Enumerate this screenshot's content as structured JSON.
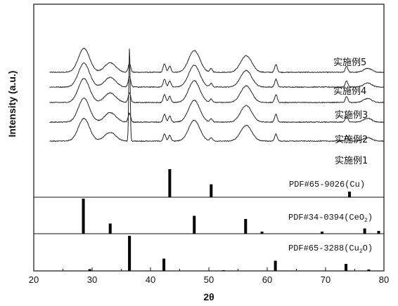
{
  "chart_data": {
    "type": "line",
    "xlabel": "2θ",
    "ylabel": "Intensity (a.u.)",
    "xlim": [
      20,
      80
    ],
    "xticks": [
      20,
      30,
      40,
      50,
      60,
      70,
      80
    ],
    "grid": false,
    "legend": "none",
    "series": [
      {
        "name": "实施例5",
        "peaks": [
          [
            28.6,
            55
          ],
          [
            33.1,
            22
          ],
          [
            36.4,
            20
          ],
          [
            42.4,
            20
          ],
          [
            43.3,
            14
          ],
          [
            47.5,
            50
          ],
          [
            50.4,
            8
          ],
          [
            56.4,
            38
          ],
          [
            61.5,
            18
          ],
          [
            73.6,
            14
          ],
          [
            77.2,
            9
          ]
        ]
      },
      {
        "name": "实施例4",
        "peaks": [
          [
            28.6,
            55
          ],
          [
            33.1,
            22
          ],
          [
            36.4,
            24
          ],
          [
            42.4,
            18
          ],
          [
            43.3,
            14
          ],
          [
            47.5,
            50
          ],
          [
            50.4,
            8
          ],
          [
            56.4,
            38
          ],
          [
            61.5,
            18
          ],
          [
            73.6,
            14
          ],
          [
            77.2,
            9
          ]
        ]
      },
      {
        "name": "实施例3",
        "peaks": [
          [
            28.6,
            55
          ],
          [
            33.1,
            22
          ],
          [
            36.4,
            22
          ],
          [
            42.4,
            18
          ],
          [
            43.3,
            14
          ],
          [
            47.5,
            50
          ],
          [
            50.4,
            8
          ],
          [
            56.4,
            38
          ],
          [
            61.5,
            18
          ],
          [
            73.6,
            14
          ],
          [
            77.2,
            9
          ]
        ]
      },
      {
        "name": "实施例2",
        "peaks": [
          [
            28.6,
            55
          ],
          [
            33.1,
            22
          ],
          [
            36.4,
            20
          ],
          [
            42.4,
            18
          ],
          [
            43.3,
            14
          ],
          [
            47.5,
            50
          ],
          [
            50.4,
            8
          ],
          [
            56.4,
            38
          ],
          [
            61.5,
            18
          ],
          [
            73.6,
            14
          ],
          [
            77.2,
            9
          ]
        ]
      },
      {
        "name": "实施例1",
        "peaks": [
          [
            28.6,
            52
          ],
          [
            33.1,
            20
          ],
          [
            36.4,
            215
          ],
          [
            42.4,
            16
          ],
          [
            43.3,
            13
          ],
          [
            47.5,
            48
          ],
          [
            50.4,
            7
          ],
          [
            56.4,
            36
          ],
          [
            61.5,
            16
          ],
          [
            73.6,
            13
          ],
          [
            77.2,
            8
          ]
        ]
      }
    ],
    "reference_patterns": [
      {
        "label": "PDF#65-9026(Cu)",
        "label_parts": [
          "PDF#65-9026(Cu)",
          "",
          ""
        ],
        "lines": [
          [
            43.3,
            100
          ],
          [
            50.4,
            46
          ],
          [
            74.1,
            20
          ]
        ]
      },
      {
        "label": "PDF#34-0394(CeO2)",
        "label_parts": [
          "PDF#34-0394(CeO",
          "2",
          ")"
        ],
        "lines": [
          [
            28.5,
            100
          ],
          [
            33.1,
            29
          ],
          [
            47.5,
            51
          ],
          [
            56.3,
            42
          ],
          [
            59.1,
            6
          ],
          [
            69.4,
            6
          ],
          [
            76.7,
            15
          ],
          [
            79.1,
            8
          ]
        ]
      },
      {
        "label": "PDF#65-3288(Cu2O)",
        "label_parts": [
          "PDF#65-3288(Cu",
          "2",
          "O)"
        ],
        "lines": [
          [
            29.6,
            5
          ],
          [
            36.4,
            100
          ],
          [
            42.3,
            35
          ],
          [
            52.5,
            2
          ],
          [
            61.4,
            29
          ],
          [
            73.5,
            20
          ],
          [
            77.4,
            4
          ]
        ]
      }
    ]
  },
  "colors": {
    "line": "#222222",
    "axis": "#111111",
    "background": "#ffffff"
  }
}
